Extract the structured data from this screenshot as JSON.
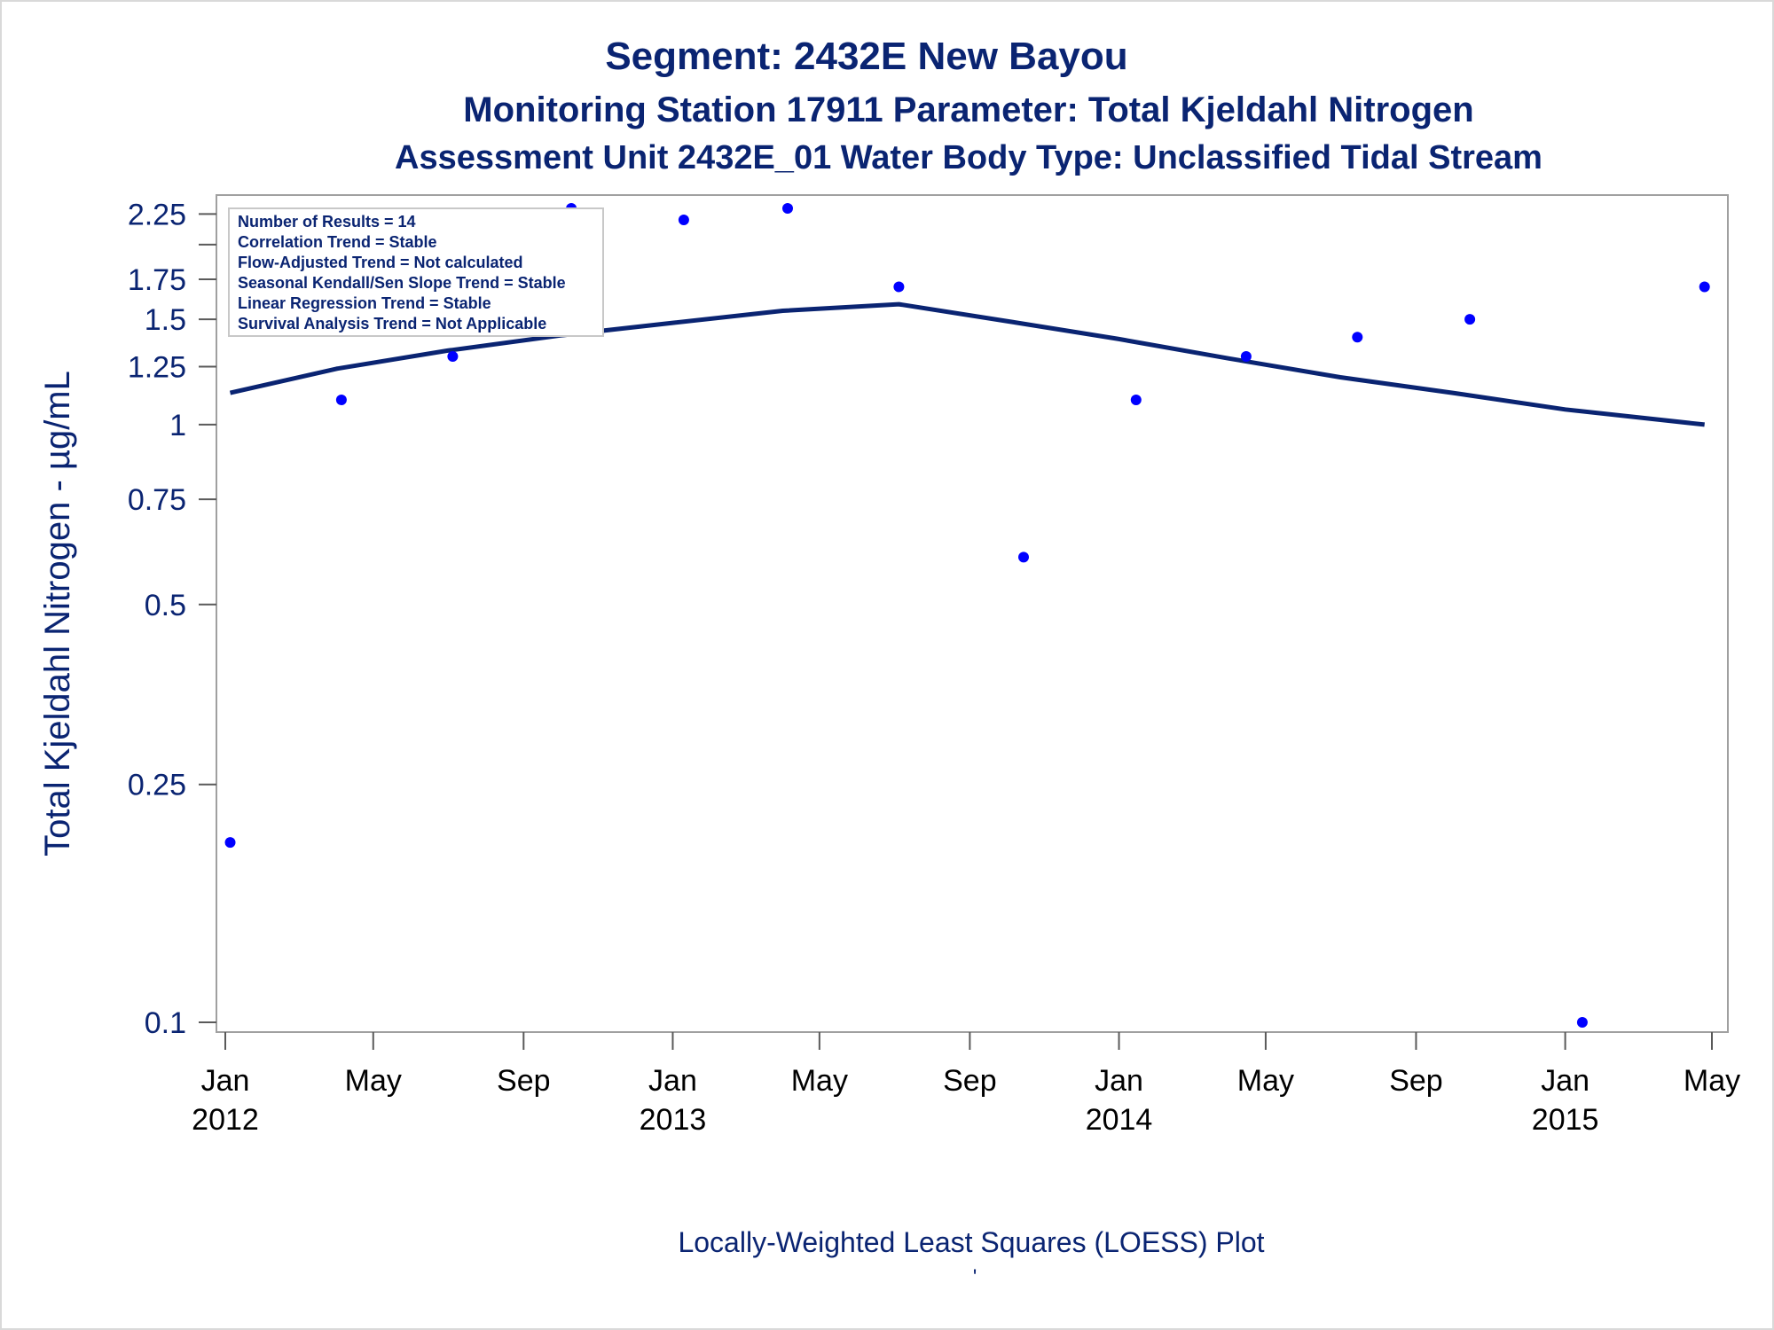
{
  "chart_data": {
    "type": "scatter",
    "title": "Segment: 2432E  New Bayou",
    "subtitle": "Monitoring Station 17911 Parameter: Total Kjeldahl Nitrogen",
    "subtitle2": "Assessment Unit 2432E_01   Water Body Type: Unclassified Tidal Stream",
    "ylabel": "Total Kjeldahl Nitrogen -  µg/mL",
    "xlabel": "Locally-Weighted Least Squares (LOESS) Plot",
    "footnote": "'",
    "y_scale": "log",
    "ylim": [
      0.1,
      2.3
    ],
    "xlim": [
      "2012-01-01",
      "2015-05-01"
    ],
    "grid": false,
    "y_ticks": [
      {
        "value": 0.1,
        "label": "0.1"
      },
      {
        "value": 0.25,
        "label": "0.25"
      },
      {
        "value": 0.5,
        "label": "0.5"
      },
      {
        "value": 0.75,
        "label": "0.75"
      },
      {
        "value": 1,
        "label": "1"
      },
      {
        "value": 1.25,
        "label": "1.25"
      },
      {
        "value": 1.5,
        "label": "1.5"
      },
      {
        "value": 1.75,
        "label": "1.75"
      },
      {
        "value": 2.25,
        "label": "2.25"
      }
    ],
    "y_minor_ticks": [
      2.0
    ],
    "x_ticks": [
      {
        "date": "2012-01-01",
        "label": "Jan",
        "year": "2012"
      },
      {
        "date": "2012-05-01",
        "label": "May",
        "year": ""
      },
      {
        "date": "2012-09-01",
        "label": "Sep",
        "year": ""
      },
      {
        "date": "2013-01-01",
        "label": "Jan",
        "year": "2013"
      },
      {
        "date": "2013-05-01",
        "label": "May",
        "year": ""
      },
      {
        "date": "2013-09-01",
        "label": "Sep",
        "year": ""
      },
      {
        "date": "2014-01-01",
        "label": "Jan",
        "year": "2014"
      },
      {
        "date": "2014-05-01",
        "label": "May",
        "year": ""
      },
      {
        "date": "2014-09-01",
        "label": "Sep",
        "year": ""
      },
      {
        "date": "2015-01-01",
        "label": "Jan",
        "year": "2015"
      },
      {
        "date": "2015-05-01",
        "label": "May",
        "year": ""
      }
    ],
    "points": [
      {
        "date": "2012-01-05",
        "value": 0.2
      },
      {
        "date": "2012-04-05",
        "value": 1.1
      },
      {
        "date": "2012-07-05",
        "value": 1.3
      },
      {
        "date": "2012-10-10",
        "value": 2.3
      },
      {
        "date": "2013-01-10",
        "value": 2.2
      },
      {
        "date": "2013-04-05",
        "value": 2.3
      },
      {
        "date": "2013-07-05",
        "value": 1.7
      },
      {
        "date": "2013-10-15",
        "value": 0.6
      },
      {
        "date": "2014-01-15",
        "value": 1.1
      },
      {
        "date": "2014-04-15",
        "value": 1.3
      },
      {
        "date": "2014-07-15",
        "value": 1.4
      },
      {
        "date": "2014-10-15",
        "value": 1.5
      },
      {
        "date": "2015-01-15",
        "value": 0.1
      },
      {
        "date": "2015-04-25",
        "value": 1.7
      }
    ],
    "loess": [
      {
        "date": "2012-01-05",
        "value": 1.13
      },
      {
        "date": "2012-04-01",
        "value": 1.24
      },
      {
        "date": "2012-07-01",
        "value": 1.33
      },
      {
        "date": "2012-10-01",
        "value": 1.41
      },
      {
        "date": "2013-01-01",
        "value": 1.48
      },
      {
        "date": "2013-04-01",
        "value": 1.55
      },
      {
        "date": "2013-07-05",
        "value": 1.59
      },
      {
        "date": "2013-10-01",
        "value": 1.49
      },
      {
        "date": "2014-01-01",
        "value": 1.39
      },
      {
        "date": "2014-04-01",
        "value": 1.29
      },
      {
        "date": "2014-07-01",
        "value": 1.2
      },
      {
        "date": "2014-10-01",
        "value": 1.13
      },
      {
        "date": "2015-01-01",
        "value": 1.06
      },
      {
        "date": "2015-04-25",
        "value": 1.0
      }
    ],
    "stats_box": [
      "Number of Results = 14",
      "Correlation Trend = Stable",
      "Flow-Adjusted Trend = Not calculated",
      "Seasonal Kendall/Sen Slope Trend = Stable",
      "Linear Regression Trend = Stable",
      "Survival Analysis Trend = Not Applicable"
    ],
    "colors": {
      "text": "#0a2472",
      "points": "#0000ff",
      "loess_line": "#0a2472",
      "frame": "#a0a0a0"
    }
  }
}
